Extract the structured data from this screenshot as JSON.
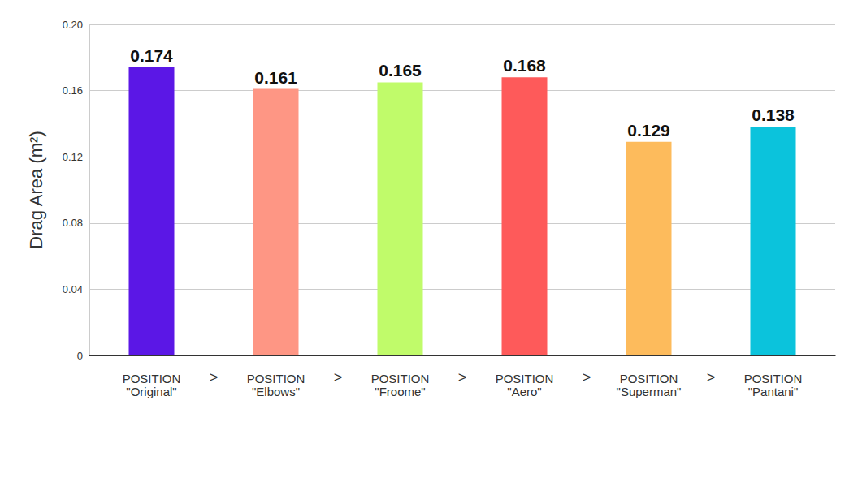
{
  "chart_data": {
    "type": "bar",
    "y_label": "Drag Area (m²)",
    "categories": [
      "POSITION\n\"Original\"",
      "POSITION\n\"Elbows\"",
      "POSITION\n\"Froome\"",
      "POSITION\n\"Aero\"",
      "POSITION\n\"Superman\"",
      "POSITION\n\"Pantani\""
    ],
    "values": [
      0.174,
      0.161,
      0.165,
      0.168,
      0.129,
      0.138
    ],
    "colors": [
      "#5b17e6",
      "#fe9684",
      "#c0fb6a",
      "#fe5a5a",
      "#fdbb5c",
      "#0bc3dc"
    ],
    "ylim": [
      0,
      0.2
    ],
    "yticks": [
      0,
      0.04,
      0.08,
      0.12,
      0.16,
      {
        "value": 0.2,
        "label": "0.20"
      }
    ],
    "grid": true,
    "data_labels": true,
    "annotations": [
      ">",
      ">",
      ">",
      ">",
      ">"
    ]
  }
}
